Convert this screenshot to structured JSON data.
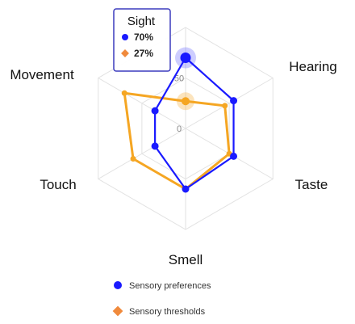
{
  "chart_data": {
    "type": "radar",
    "categories": [
      "Sight",
      "Hearing",
      "Taste",
      "Smell",
      "Touch",
      "Movement"
    ],
    "ticks": [
      0,
      50
    ],
    "rmax": 100,
    "series": [
      {
        "name": "Sensory preferences",
        "color": "#1a1aff",
        "values": [
          70,
          55,
          55,
          60,
          35,
          35
        ]
      },
      {
        "name": "Sensory thresholds",
        "color": "#f5a623",
        "values": [
          27,
          45,
          50,
          60,
          60,
          70
        ]
      }
    ],
    "legend_position": "bottom",
    "tooltip": {
      "title": "Sight",
      "rows": [
        {
          "text": "70%",
          "color": "#1a1aff",
          "marker": "circle"
        },
        {
          "text": "27%",
          "color": "#f08a3c",
          "marker": "diamond"
        }
      ]
    }
  }
}
